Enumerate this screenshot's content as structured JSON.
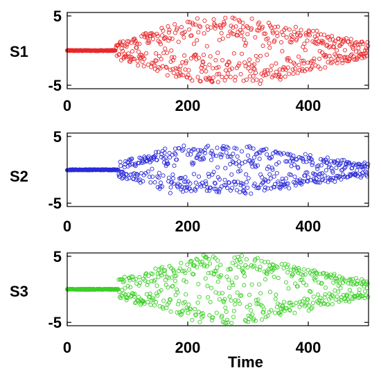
{
  "chart_data": [
    {
      "type": "scatter",
      "series": [
        {
          "name": "S1",
          "color": "#e8282b",
          "t": [],
          "y": []
        }
      ],
      "xlim": [
        0,
        500
      ],
      "ylim": [
        -5.5,
        5.5
      ],
      "yticks": [
        5,
        -5
      ],
      "xticks": [
        0,
        200,
        400
      ],
      "xlabel": "",
      "ylabel": "S1",
      "grid": false
    },
    {
      "type": "scatter",
      "series": [
        {
          "name": "S2",
          "color": "#2b2bd9",
          "t": [],
          "y": []
        }
      ],
      "xlim": [
        0,
        500
      ],
      "ylim": [
        -5.5,
        5.5
      ],
      "yticks": [
        5,
        -5
      ],
      "xticks": [
        0,
        200,
        400
      ],
      "xlabel": "",
      "ylabel": "S2",
      "grid": false
    },
    {
      "type": "scatter",
      "series": [
        {
          "name": "S3",
          "color": "#3ccf27",
          "t": [],
          "y": []
        }
      ],
      "xlim": [
        0,
        500
      ],
      "ylim": [
        -5.5,
        5.5
      ],
      "yticks": [
        5,
        -5
      ],
      "xticks": [
        0,
        200,
        400
      ],
      "xlabel": "Time",
      "ylabel": "S3",
      "grid": false
    }
  ]
}
